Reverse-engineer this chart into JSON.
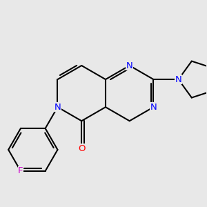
{
  "background_color": "#e8e8e8",
  "bond_color": "#000000",
  "bond_width": 1.5,
  "atom_colors": {
    "N": "#0000ff",
    "O": "#ff0000",
    "F": "#cc00cc",
    "C": "#000000"
  }
}
